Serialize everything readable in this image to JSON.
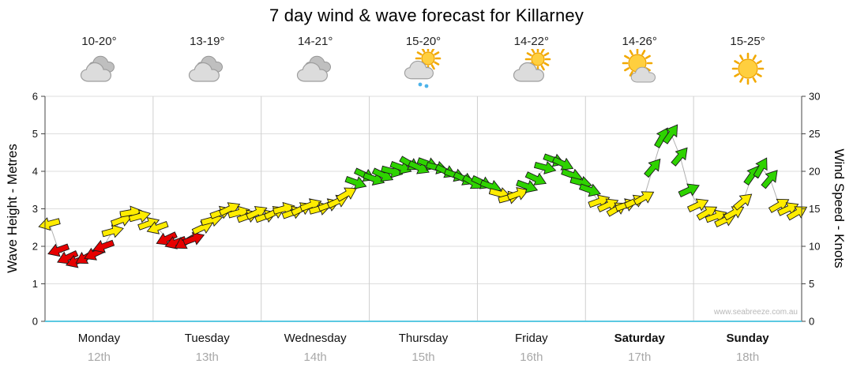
{
  "title": "7 day wind & wave forecast for Killarney",
  "watermark": "www.seabreeze.com.au",
  "days": [
    {
      "name": "Monday",
      "date": "12th",
      "temp": "10-20°",
      "icon": "cloudy",
      "bold": false
    },
    {
      "name": "Tuesday",
      "date": "13th",
      "temp": "13-19°",
      "icon": "cloudy",
      "bold": false
    },
    {
      "name": "Wednesday",
      "date": "14th",
      "temp": "14-21°",
      "icon": "cloudy",
      "bold": false
    },
    {
      "name": "Thursday",
      "date": "15th",
      "temp": "15-20°",
      "icon": "sun-cloud-rain",
      "bold": false
    },
    {
      "name": "Friday",
      "date": "16th",
      "temp": "14-22°",
      "icon": "sun-cloud",
      "bold": false
    },
    {
      "name": "Saturday",
      "date": "17th",
      "temp": "14-26°",
      "icon": "sun-small-cloud",
      "bold": true
    },
    {
      "name": "Sunday",
      "date": "18th",
      "temp": "15-25°",
      "icon": "sunny",
      "bold": true
    }
  ],
  "chart_data": {
    "type": "scatter",
    "marker": "wind-arrow",
    "title": "7 day wind & wave forecast for Killarney",
    "x_description": "12 points per day (about 2-hourly), Monday 12th through Sunday 18th",
    "categories_days": [
      "Monday 12th",
      "Tuesday 13th",
      "Wednesday 14th",
      "Thursday 15th",
      "Friday 16th",
      "Saturday 17th",
      "Sunday 18th"
    ],
    "points_per_day": 12,
    "left_axis": {
      "label": "Wave Height - Metres",
      "min": 0,
      "max": 6,
      "ticks": [
        0,
        1,
        2,
        3,
        4,
        5,
        6
      ]
    },
    "right_axis": {
      "label": "Wind Speed - Knots",
      "min": 0,
      "max": 30,
      "ticks": [
        0,
        5,
        10,
        15,
        20,
        25,
        30
      ]
    },
    "grid": true,
    "color_rules": {
      "red_max_kts": 11,
      "yellow_max_kts": 17
    },
    "colors": {
      "red": "#e60000",
      "yellow": "#ffec00",
      "green": "#2ed300",
      "connector": "#b0b0b0",
      "bottom_axis": "#5bc9e2"
    },
    "knots": [
      13,
      9.5,
      8.5,
      8,
      8.5,
      9,
      10,
      12,
      13.5,
      14.5,
      14,
      13,
      12.5,
      11,
      10.5,
      10.5,
      11,
      12.5,
      13.5,
      14.5,
      15,
      14.5,
      14,
      14.5,
      14,
      14.5,
      15,
      14.5,
      15,
      15.5,
      15,
      15.5,
      16,
      17,
      18.5,
      19.5,
      19,
      19.5,
      20,
      20.5,
      21,
      20.5,
      21,
      20.5,
      20,
      19.5,
      19,
      18.5,
      18.5,
      18,
      17,
      16.5,
      17,
      18,
      19,
      20.5,
      21.5,
      21,
      19.5,
      18.5,
      17.5,
      16,
      15.5,
      15,
      15.5,
      16,
      16.5,
      20.5,
      24.5,
      25,
      22,
      17.5,
      15.5,
      14.5,
      14,
      13.5,
      14.5,
      16,
      19.5,
      20.5,
      19,
      15.5,
      15,
      14.5
    ],
    "dirs_deg": [
      165,
      160,
      155,
      160,
      150,
      155,
      160,
      345,
      340,
      350,
      345,
      340,
      160,
      155,
      160,
      150,
      340,
      335,
      345,
      340,
      335,
      345,
      340,
      335,
      340,
      335,
      345,
      340,
      335,
      340,
      345,
      340,
      335,
      330,
      20,
      25,
      20,
      25,
      15,
      20,
      30,
      25,
      20,
      15,
      25,
      20,
      25,
      30,
      25,
      20,
      15,
      345,
      340,
      20,
      25,
      15,
      20,
      25,
      20,
      15,
      20,
      340,
      335,
      330,
      340,
      335,
      330,
      310,
      300,
      305,
      310,
      335,
      335,
      330,
      340,
      335,
      330,
      320,
      305,
      300,
      310,
      330,
      335,
      330
    ]
  }
}
